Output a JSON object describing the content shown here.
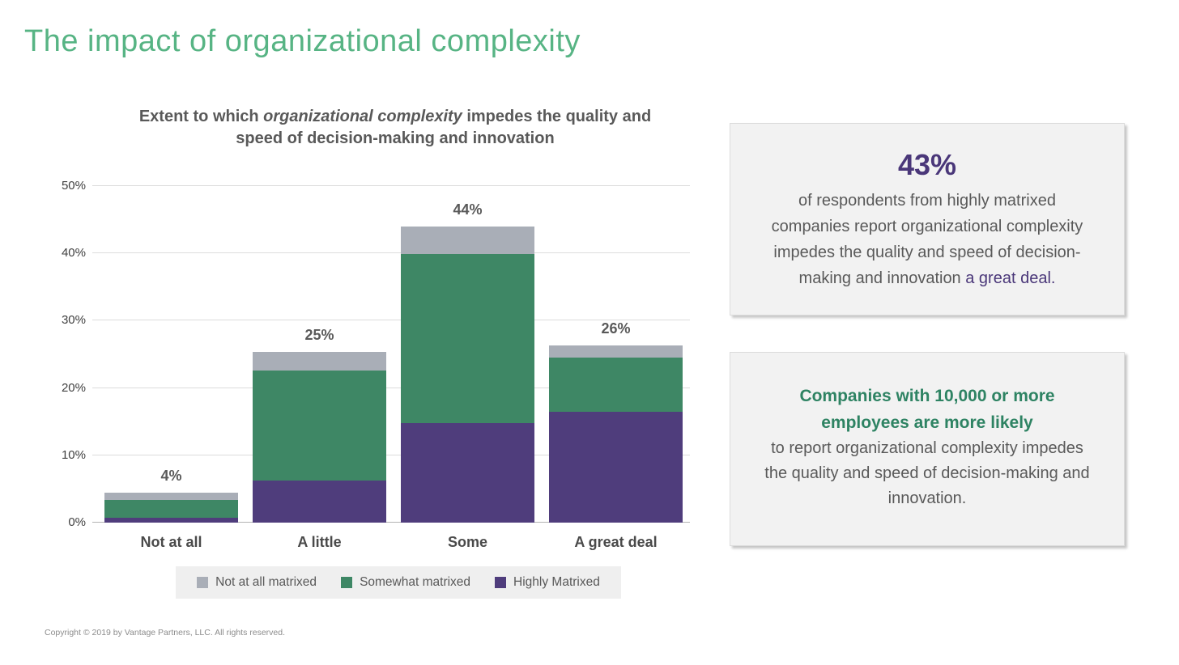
{
  "page": {
    "title": "The impact of organizational complexity",
    "copyright": "Copyright © 2019 by Vantage Partners, LLC. All rights reserved."
  },
  "colors": {
    "title_green": "#57b484",
    "accent_purple": "#4a3779",
    "accent_green": "#2e8363",
    "bar_purple": "#4f3d7c",
    "bar_green": "#3e8765",
    "bar_gray": "#a9aeb7",
    "text_gray": "#595959",
    "legend_bg": "#efefef"
  },
  "chart_data": {
    "type": "stacked-bar",
    "title_parts": [
      "Extent to which ",
      "organizational complexity",
      " impedes the quality and speed of decision-making and innovation"
    ],
    "categories": [
      "Not at all",
      "A little",
      "Some",
      "A great deal"
    ],
    "series": [
      {
        "name": "Highly Matrixed",
        "color": "#4f3d7c",
        "values": [
          0.7,
          6.2,
          14.8,
          16.5
        ]
      },
      {
        "name": "Somewhat matrixed",
        "color": "#3e8765",
        "values": [
          2.7,
          16.4,
          25.1,
          8.0
        ]
      },
      {
        "name": "Not at all matrixed",
        "color": "#a9aeb7",
        "values": [
          1.0,
          2.8,
          4.1,
          1.8
        ]
      }
    ],
    "totals_labels": [
      "4%",
      "25%",
      "44%",
      "26%"
    ],
    "yticks": [
      "0%",
      "10%",
      "20%",
      "30%",
      "40%",
      "50%"
    ],
    "ylim": [
      0,
      50
    ],
    "grid": true,
    "legend_position": "bottom",
    "legend": [
      {
        "label": "Not at all matrixed",
        "color": "#a9aeb7"
      },
      {
        "label": "Somewhat matrixed",
        "color": "#3e8765"
      },
      {
        "label": "Highly Matrixed",
        "color": "#4f3d7c"
      }
    ],
    "legend_bg": "#efefef"
  },
  "callouts": {
    "box1": {
      "stat": "43%",
      "body_text": "of respondents from highly matrixed\ncompanies report organizational complexity\nimpedes the quality and speed of decision-\nmaking and innovation ",
      "body_highlight": "a great deal."
    },
    "box2": {
      "headline": "Companies with 10,000 or more\nemployees are more likely",
      "body": "to report organizational complexity impedes\nthe quality and speed of decision-making and\ninnovation."
    }
  }
}
